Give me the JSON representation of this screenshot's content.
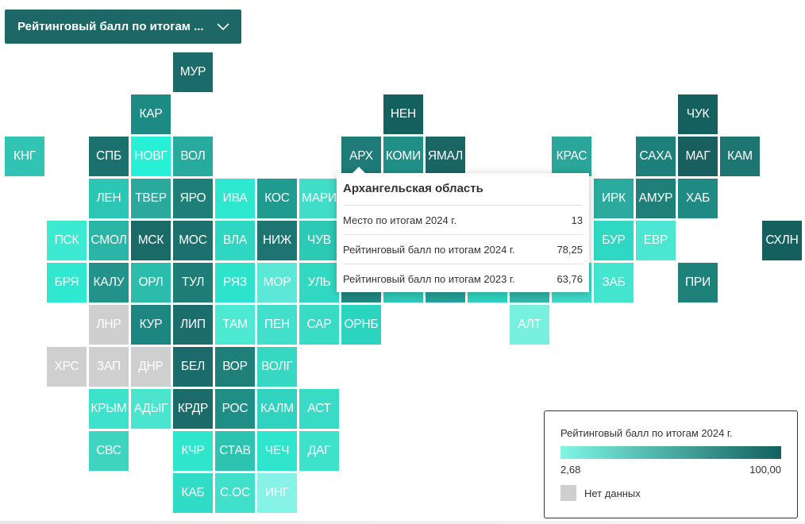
{
  "selector": {
    "label": "Рейтинговый балл по итогам ...",
    "icon": "chevron-down-icon"
  },
  "colors": {
    "nodata": "#cfcfcf",
    "scale_min": "#7ff7e4",
    "scale_max": "#14605f"
  },
  "map": {
    "grid_cols": 19,
    "tiles": [
      {
        "abbr": "МУР",
        "col": 4,
        "row": 0,
        "color": "#1a6b69"
      },
      {
        "abbr": "КАР",
        "col": 3,
        "row": 1,
        "color": "#1d8a83"
      },
      {
        "abbr": "НЕН",
        "col": 9,
        "row": 1,
        "color": "#14605f"
      },
      {
        "abbr": "ЧУК",
        "col": 16,
        "row": 1,
        "color": "#14605f"
      },
      {
        "abbr": "КНГ",
        "col": 0,
        "row": 2,
        "color": "#32c4b2"
      },
      {
        "abbr": "СПБ",
        "col": 2,
        "row": 2,
        "color": "#1b716e"
      },
      {
        "abbr": "НОВГ",
        "col": 3,
        "row": 2,
        "color": "#28f0d6"
      },
      {
        "abbr": "ВОЛ",
        "col": 4,
        "row": 2,
        "color": "#27ab9f"
      },
      {
        "abbr": "АРХ",
        "col": 8,
        "row": 2,
        "color": "#1e7b77"
      },
      {
        "abbr": "КОМИ",
        "col": 9,
        "row": 2,
        "color": "#209087"
      },
      {
        "abbr": "ЯМАЛ",
        "col": 10,
        "row": 2,
        "color": "#1a6664"
      },
      {
        "abbr": "КРАС",
        "col": 13,
        "row": 2,
        "color": "#2aa69a"
      },
      {
        "abbr": "САХА",
        "col": 15,
        "row": 2,
        "color": "#1e807a"
      },
      {
        "abbr": "МАГ",
        "col": 16,
        "row": 2,
        "color": "#17605f"
      },
      {
        "abbr": "КАМ",
        "col": 17,
        "row": 2,
        "color": "#1d7672"
      },
      {
        "abbr": "ЛЕН",
        "col": 2,
        "row": 3,
        "color": "#2bc7b4"
      },
      {
        "abbr": "ТВЕР",
        "col": 3,
        "row": 3,
        "color": "#2ba99d"
      },
      {
        "abbr": "ЯРО",
        "col": 4,
        "row": 3,
        "color": "#1e7f79"
      },
      {
        "abbr": "ИВА",
        "col": 5,
        "row": 3,
        "color": "#2de8cf"
      },
      {
        "abbr": "КОС",
        "col": 6,
        "row": 3,
        "color": "#209b90"
      },
      {
        "abbr": "МАРИ",
        "col": 7,
        "row": 3,
        "color": "#40ddc8"
      },
      {
        "abbr": "ИРК",
        "col": 14,
        "row": 3,
        "color": "#2baa9d"
      },
      {
        "abbr": "АМУР",
        "col": 15,
        "row": 3,
        "color": "#1e8079"
      },
      {
        "abbr": "ХАБ",
        "col": 16,
        "row": 3,
        "color": "#1e8a83"
      },
      {
        "abbr": "ПСК",
        "col": 1,
        "row": 4,
        "color": "#3ce9d1"
      },
      {
        "abbr": "СМОЛ",
        "col": 2,
        "row": 4,
        "color": "#2bb5a6"
      },
      {
        "abbr": "МСК",
        "col": 3,
        "row": 4,
        "color": "#1a6a68"
      },
      {
        "abbr": "МОС",
        "col": 4,
        "row": 4,
        "color": "#1c706d"
      },
      {
        "abbr": "ВЛА",
        "col": 5,
        "row": 4,
        "color": "#2fd6c1"
      },
      {
        "abbr": "НИЖ",
        "col": 6,
        "row": 4,
        "color": "#1d7471"
      },
      {
        "abbr": "ЧУВ",
        "col": 7,
        "row": 4,
        "color": "#2cc9b5"
      },
      {
        "abbr": "БУР",
        "col": 14,
        "row": 4,
        "color": "#2fd8c2"
      },
      {
        "abbr": "ЕВР",
        "col": 15,
        "row": 4,
        "color": "#4be7d2"
      },
      {
        "abbr": "СХЛН",
        "col": 18,
        "row": 4,
        "color": "#14605f"
      },
      {
        "abbr": "БРЯ",
        "col": 1,
        "row": 5,
        "color": "#30e8cf"
      },
      {
        "abbr": "КАЛУ",
        "col": 2,
        "row": 5,
        "color": "#23928a"
      },
      {
        "abbr": "ОРЛ",
        "col": 3,
        "row": 5,
        "color": "#2cbcab"
      },
      {
        "abbr": "ТУЛ",
        "col": 4,
        "row": 5,
        "color": "#1e7d77"
      },
      {
        "abbr": "РЯЗ",
        "col": 5,
        "row": 5,
        "color": "#2ee3cc"
      },
      {
        "abbr": "МОР",
        "col": 6,
        "row": 5,
        "color": "#5be8d6"
      },
      {
        "abbr": "УЛЬ",
        "col": 7,
        "row": 5,
        "color": "#31d9c3"
      },
      {
        "abbr": "",
        "col": 8,
        "row": 5,
        "color": "#1f8a83"
      },
      {
        "abbr": "",
        "col": 9,
        "row": 5,
        "color": "#2ec9b6"
      },
      {
        "abbr": "",
        "col": 10,
        "row": 5,
        "color": "#24a196"
      },
      {
        "abbr": "",
        "col": 11,
        "row": 5,
        "color": "#2fd3be"
      },
      {
        "abbr": "",
        "col": 12,
        "row": 5,
        "color": "#30b7a8"
      },
      {
        "abbr": "",
        "col": 13,
        "row": 5,
        "color": "#3fd9c6"
      },
      {
        "abbr": "ЗАБ",
        "col": 14,
        "row": 5,
        "color": "#44e5cf"
      },
      {
        "abbr": "ПРИ",
        "col": 16,
        "row": 5,
        "color": "#1e827b"
      },
      {
        "abbr": "ЛНР",
        "col": 2,
        "row": 6,
        "color": "#cfcfcf"
      },
      {
        "abbr": "КУР",
        "col": 3,
        "row": 6,
        "color": "#1d8680"
      },
      {
        "abbr": "ЛИП",
        "col": 4,
        "row": 6,
        "color": "#1b6e6c"
      },
      {
        "abbr": "ТАМ",
        "col": 5,
        "row": 6,
        "color": "#4ce9d3"
      },
      {
        "abbr": "ПЕН",
        "col": 6,
        "row": 6,
        "color": "#42e0cb"
      },
      {
        "abbr": "САР",
        "col": 7,
        "row": 6,
        "color": "#38dcc5"
      },
      {
        "abbr": "ОРНБ",
        "col": 8,
        "row": 6,
        "color": "#2bd4bf"
      },
      {
        "abbr": "АЛТ",
        "col": 12,
        "row": 6,
        "color": "#78f0e0"
      },
      {
        "abbr": "ХРС",
        "col": 1,
        "row": 7,
        "color": "#cfcfcf"
      },
      {
        "abbr": "ЗАП",
        "col": 2,
        "row": 7,
        "color": "#cfcfcf"
      },
      {
        "abbr": "ДНР",
        "col": 3,
        "row": 7,
        "color": "#cfcfcf"
      },
      {
        "abbr": "БЕЛ",
        "col": 4,
        "row": 7,
        "color": "#1a6b69"
      },
      {
        "abbr": "ВОР",
        "col": 5,
        "row": 7,
        "color": "#1e8079"
      },
      {
        "abbr": "ВОЛГ",
        "col": 6,
        "row": 7,
        "color": "#36d8c2"
      },
      {
        "abbr": "КРЫМ",
        "col": 2,
        "row": 8,
        "color": "#3ce2cc"
      },
      {
        "abbr": "АДЫГ",
        "col": 3,
        "row": 8,
        "color": "#4be4cf"
      },
      {
        "abbr": "КРДР",
        "col": 4,
        "row": 8,
        "color": "#1a6b69"
      },
      {
        "abbr": "РОС",
        "col": 5,
        "row": 8,
        "color": "#1f8e86"
      },
      {
        "abbr": "КАЛМ",
        "col": 6,
        "row": 8,
        "color": "#30d3bf"
      },
      {
        "abbr": "АСТ",
        "col": 7,
        "row": 8,
        "color": "#38dcc6"
      },
      {
        "abbr": "СВС",
        "col": 2,
        "row": 9,
        "color": "#3fd4c0"
      },
      {
        "abbr": "КЧР",
        "col": 4,
        "row": 9,
        "color": "#2fe6cd"
      },
      {
        "abbr": "СТАВ",
        "col": 5,
        "row": 9,
        "color": "#2cc4b1"
      },
      {
        "abbr": "ЧЕЧ",
        "col": 6,
        "row": 9,
        "color": "#2fe6cd"
      },
      {
        "abbr": "ДАГ",
        "col": 7,
        "row": 9,
        "color": "#3ee2cb"
      },
      {
        "abbr": "КАБ",
        "col": 4,
        "row": 10,
        "color": "#30dcc5"
      },
      {
        "abbr": "С.ОС",
        "col": 5,
        "row": 10,
        "color": "#40e0ca"
      },
      {
        "abbr": "ИНГ",
        "col": 6,
        "row": 10,
        "color": "#86f3e6"
      }
    ]
  },
  "tooltip": {
    "title": "Архангельская область",
    "rows": [
      {
        "label": "Место по итогам 2024 г.",
        "value": "13"
      },
      {
        "label": "Рейтинговый балл по итогам 2024 г.",
        "value": "78,25"
      },
      {
        "label": "Рейтинговый балл по итогам 2023 г.",
        "value": "63,76"
      }
    ]
  },
  "legend": {
    "title": "Рейтинговый балл по итогам 2024 г.",
    "min": "2,68",
    "max": "100,00",
    "nodata_label": "Нет данных"
  }
}
